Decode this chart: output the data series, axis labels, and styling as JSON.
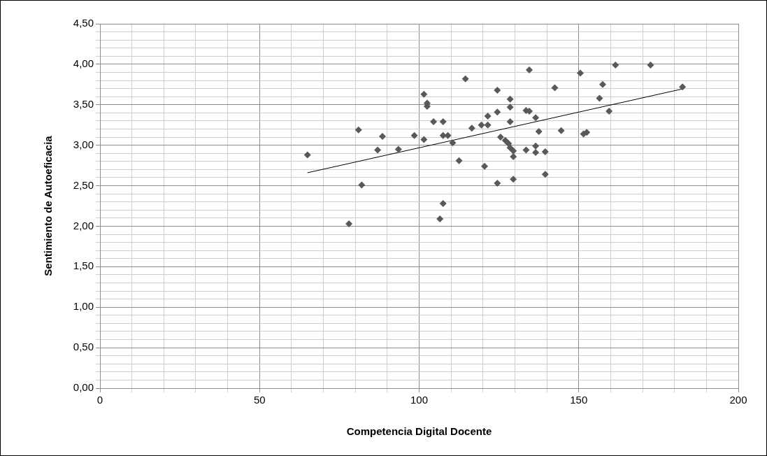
{
  "chart_data": {
    "type": "scatter",
    "xlabel": "Competencia Digital Docente",
    "ylabel": "Sentimiento de Autoeficacia",
    "xlim": [
      0,
      200
    ],
    "ylim": [
      0,
      4.5
    ],
    "xticks": [
      0,
      {
        "value": 10,
        "label": null
      },
      {
        "value": 20,
        "label": null
      },
      {
        "value": 30,
        "label": null
      },
      {
        "value": 40,
        "label": null
      },
      50,
      {
        "value": 60,
        "label": null
      },
      {
        "value": 70,
        "label": null
      },
      {
        "value": 80,
        "label": null
      },
      {
        "value": 90,
        "label": null
      },
      100,
      {
        "value": 110,
        "label": null
      },
      {
        "value": 120,
        "label": null
      },
      {
        "value": 130,
        "label": null
      },
      {
        "value": 140,
        "label": null
      },
      150,
      {
        "value": 160,
        "label": null
      },
      {
        "value": 170,
        "label": null
      },
      {
        "value": 180,
        "label": null
      },
      {
        "value": 190,
        "label": null
      },
      200
    ],
    "yticks": [
      {
        "value": 0,
        "label": "0,00"
      },
      {
        "value": 0.1,
        "label": null
      },
      {
        "value": 0.2,
        "label": null
      },
      {
        "value": 0.3,
        "label": null
      },
      {
        "value": 0.4,
        "label": null
      },
      {
        "value": 0.5,
        "label": "0,50"
      },
      {
        "value": 0.6,
        "label": null
      },
      {
        "value": 0.7,
        "label": null
      },
      {
        "value": 0.8,
        "label": null
      },
      {
        "value": 0.9,
        "label": null
      },
      {
        "value": 1,
        "label": "1,00"
      },
      {
        "value": 1.1,
        "label": null
      },
      {
        "value": 1.2,
        "label": null
      },
      {
        "value": 1.3,
        "label": null
      },
      {
        "value": 1.4,
        "label": null
      },
      {
        "value": 1.5,
        "label": "1,50"
      },
      {
        "value": 1.6,
        "label": null
      },
      {
        "value": 1.7,
        "label": null
      },
      {
        "value": 1.8,
        "label": null
      },
      {
        "value": 1.9,
        "label": null
      },
      {
        "value": 2,
        "label": "2,00"
      },
      {
        "value": 2.1,
        "label": null
      },
      {
        "value": 2.2,
        "label": null
      },
      {
        "value": 2.3,
        "label": null
      },
      {
        "value": 2.4,
        "label": null
      },
      {
        "value": 2.5,
        "label": "2,50"
      },
      {
        "value": 2.6,
        "label": null
      },
      {
        "value": 2.7,
        "label": null
      },
      {
        "value": 2.8,
        "label": null
      },
      {
        "value": 2.9,
        "label": null
      },
      {
        "value": 3,
        "label": "3,00"
      },
      {
        "value": 3.1,
        "label": null
      },
      {
        "value": 3.2,
        "label": null
      },
      {
        "value": 3.3,
        "label": null
      },
      {
        "value": 3.4,
        "label": null
      },
      {
        "value": 3.5,
        "label": "3,50"
      },
      {
        "value": 3.6,
        "label": null
      },
      {
        "value": 3.7,
        "label": null
      },
      {
        "value": 3.8,
        "label": null
      },
      {
        "value": 3.9,
        "label": null
      },
      {
        "value": 4,
        "label": "4,00"
      },
      {
        "value": 4.1,
        "label": null
      },
      {
        "value": 4.2,
        "label": null
      },
      {
        "value": 4.3,
        "label": null
      },
      {
        "value": 4.4,
        "label": null
      },
      {
        "value": 4.5,
        "label": "4,50"
      }
    ],
    "grid": true,
    "legend": false,
    "marker": "diamond",
    "series": [
      {
        "color": "#595959",
        "x": [
          65,
          78,
          81,
          82,
          87,
          88.5,
          93.5,
          98.5,
          101.5,
          101.5,
          102.5,
          102.5,
          104.5,
          106.5,
          107.5,
          107.5,
          107.5,
          109,
          110.5,
          112.5,
          114.5,
          116.5,
          119.5,
          121.5,
          120.5,
          121.5,
          124.5,
          124.5,
          124.5,
          125.5,
          127,
          128,
          128.5,
          129.5,
          129.5,
          128.5,
          128.5,
          128.5,
          129.5,
          133.5,
          133.5,
          134.5,
          134.5,
          136.5,
          136.5,
          136.5,
          137.5,
          139.5,
          139.5,
          142.5,
          144.5,
          150.5,
          151.5,
          152.5,
          156.5,
          157.5,
          159.5,
          161.5,
          172.5,
          182.5
        ],
        "values": [
          2.88,
          2.03,
          3.19,
          2.51,
          2.94,
          3.11,
          2.95,
          3.12,
          3.63,
          3.07,
          3.52,
          3.48,
          3.29,
          2.09,
          2.28,
          3.29,
          3.12,
          3.12,
          3.03,
          2.81,
          3.82,
          3.21,
          3.25,
          3.25,
          2.74,
          3.36,
          3.68,
          3.41,
          2.53,
          3.1,
          3.06,
          3.02,
          2.97,
          2.93,
          2.86,
          3.57,
          3.47,
          3.29,
          2.58,
          2.94,
          3.43,
          3.42,
          3.93,
          3.34,
          2.99,
          2.91,
          3.17,
          2.92,
          2.64,
          3.71,
          3.18,
          3.89,
          3.14,
          3.16,
          3.58,
          3.75,
          3.42,
          3.99,
          3.99,
          3.72
        ]
      },
      {
        "type": "line",
        "color": "#000000",
        "marker": "none",
        "x": [
          65,
          183
        ],
        "values": [
          2.66,
          3.7
        ]
      }
    ]
  }
}
